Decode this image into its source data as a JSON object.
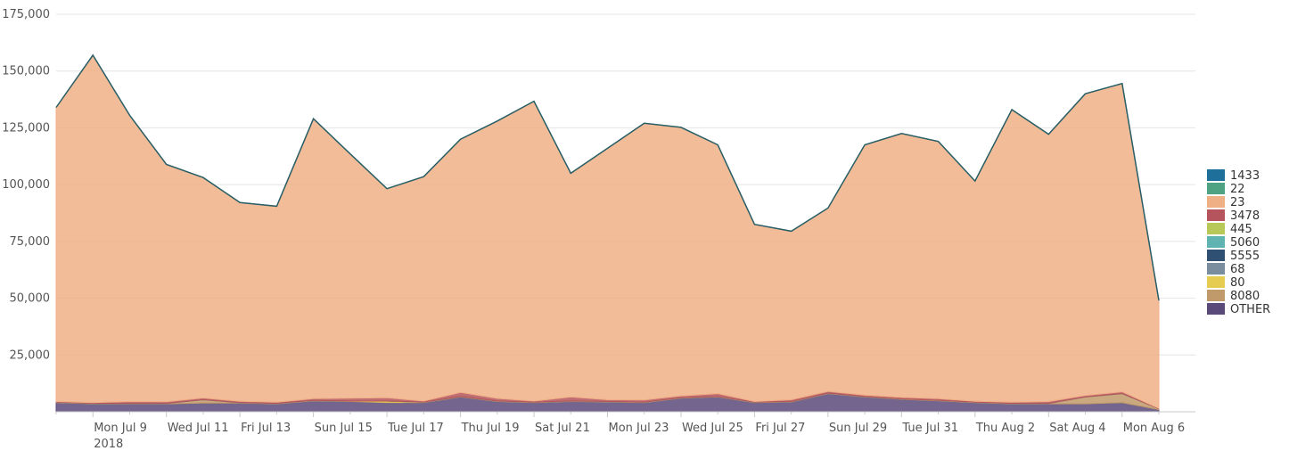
{
  "chart_data": {
    "type": "area",
    "stacked": true,
    "title": "",
    "xlabel": "",
    "ylabel": "",
    "ylim": [
      0,
      175000
    ],
    "y_ticks": [
      25000,
      50000,
      75000,
      100000,
      125000,
      150000,
      175000
    ],
    "y_tick_labels": [
      "25,000",
      "50,000",
      "75,000",
      "100,000",
      "125,000",
      "150,000",
      "175,000"
    ],
    "x": [
      "2018-07-08",
      "2018-07-09",
      "2018-07-10",
      "2018-07-11",
      "2018-07-12",
      "2018-07-13",
      "2018-07-14",
      "2018-07-15",
      "2018-07-16",
      "2018-07-17",
      "2018-07-18",
      "2018-07-19",
      "2018-07-20",
      "2018-07-21",
      "2018-07-22",
      "2018-07-23",
      "2018-07-24",
      "2018-07-25",
      "2018-07-26",
      "2018-07-27",
      "2018-07-28",
      "2018-07-29",
      "2018-07-30",
      "2018-07-31",
      "2018-08-01",
      "2018-08-02",
      "2018-08-03",
      "2018-08-04",
      "2018-08-05",
      "2018-08-06",
      "2018-08-07"
    ],
    "x_ticks": [
      {
        "date": "2018-07-09",
        "label": "Mon Jul 9",
        "sublabel": "2018"
      },
      {
        "date": "2018-07-11",
        "label": "Wed Jul 11"
      },
      {
        "date": "2018-07-13",
        "label": "Fri Jul 13"
      },
      {
        "date": "2018-07-15",
        "label": "Sun Jul 15"
      },
      {
        "date": "2018-07-17",
        "label": "Tue Jul 17"
      },
      {
        "date": "2018-07-19",
        "label": "Thu Jul 19"
      },
      {
        "date": "2018-07-21",
        "label": "Sat Jul 21"
      },
      {
        "date": "2018-07-23",
        "label": "Mon Jul 23"
      },
      {
        "date": "2018-07-25",
        "label": "Wed Jul 25"
      },
      {
        "date": "2018-07-27",
        "label": "Fri Jul 27"
      },
      {
        "date": "2018-07-29",
        "label": "Sun Jul 29"
      },
      {
        "date": "2018-07-31",
        "label": "Tue Jul 31"
      },
      {
        "date": "2018-08-02",
        "label": "Thu Aug 2"
      },
      {
        "date": "2018-08-04",
        "label": "Sat Aug 4"
      },
      {
        "date": "2018-08-06",
        "label": "Mon Aug 6"
      }
    ],
    "legend_position": "right",
    "series": [
      {
        "name": "OTHER",
        "color": "#5a4a7a",
        "values": [
          4000,
          3500,
          3500,
          3500,
          3800,
          3800,
          3500,
          4800,
          4500,
          4000,
          4000,
          6500,
          4500,
          4000,
          4500,
          4300,
          4000,
          6000,
          6500,
          4000,
          4300,
          8000,
          6500,
          5500,
          4800,
          4000,
          3500,
          3500,
          3500,
          4000,
          1000
        ]
      },
      {
        "name": "8080",
        "color": "#c19a6b",
        "values": [
          200,
          200,
          200,
          200,
          1500,
          200,
          200,
          200,
          200,
          200,
          200,
          200,
          200,
          200,
          200,
          200,
          200,
          200,
          200,
          200,
          200,
          200,
          200,
          200,
          200,
          200,
          200,
          200,
          3000,
          4000,
          300
        ]
      },
      {
        "name": "80",
        "color": "#e6cc50",
        "values": [
          0,
          0,
          0,
          0,
          0,
          0,
          0,
          0,
          0,
          500,
          0,
          0,
          0,
          0,
          0,
          0,
          0,
          0,
          0,
          0,
          0,
          0,
          0,
          0,
          0,
          0,
          0,
          0,
          0,
          0,
          0
        ]
      },
      {
        "name": "68",
        "color": "#7b8ea0",
        "values": [
          0,
          0,
          0,
          0,
          0,
          0,
          0,
          0,
          0,
          0,
          0,
          0,
          0,
          0,
          0,
          0,
          0,
          0,
          0,
          0,
          0,
          0,
          0,
          0,
          0,
          0,
          0,
          0,
          0,
          0,
          0
        ]
      },
      {
        "name": "5555",
        "color": "#2f4f73",
        "values": [
          0,
          0,
          0,
          0,
          0,
          0,
          0,
          0,
          0,
          0,
          0,
          0,
          0,
          0,
          0,
          0,
          0,
          0,
          0,
          0,
          0,
          0,
          0,
          0,
          0,
          0,
          0,
          0,
          0,
          0,
          0
        ]
      },
      {
        "name": "5060",
        "color": "#5fb3b0",
        "values": [
          0,
          0,
          0,
          0,
          0,
          0,
          0,
          0,
          0,
          0,
          0,
          0,
          0,
          0,
          0,
          0,
          0,
          0,
          0,
          0,
          0,
          0,
          0,
          0,
          0,
          0,
          0,
          0,
          0,
          0,
          0
        ]
      },
      {
        "name": "445",
        "color": "#b8c95a",
        "values": [
          0,
          0,
          0,
          0,
          0,
          0,
          0,
          0,
          0,
          0,
          0,
          0,
          0,
          0,
          0,
          0,
          0,
          0,
          0,
          0,
          0,
          0,
          0,
          0,
          0,
          0,
          0,
          0,
          0,
          0,
          0
        ]
      },
      {
        "name": "3478",
        "color": "#b5545c",
        "values": [
          300,
          300,
          800,
          700,
          800,
          600,
          500,
          800,
          1300,
          1500,
          500,
          1800,
          1200,
          500,
          1800,
          800,
          1000,
          800,
          1300,
          300,
          800,
          800,
          600,
          600,
          800,
          400,
          500,
          800,
          700,
          800,
          200
        ]
      },
      {
        "name": "23",
        "color": "#f0b086",
        "values": [
          129500,
          153000,
          126000,
          104500,
          97000,
          87500,
          86300,
          123200,
          107500,
          92000,
          98800,
          111500,
          122100,
          132000,
          98500,
          110700,
          121800,
          118200,
          109500,
          78000,
          74200,
          80700,
          110200,
          116200,
          113200,
          97000,
          128800,
          117700,
          132800,
          135700,
          47500
        ]
      },
      {
        "name": "22",
        "color": "#4fa383",
        "values": [
          0,
          0,
          0,
          0,
          0,
          0,
          0,
          0,
          0,
          0,
          0,
          0,
          0,
          0,
          0,
          0,
          0,
          0,
          0,
          0,
          0,
          0,
          0,
          0,
          0,
          0,
          0,
          0,
          0,
          0,
          0
        ]
      },
      {
        "name": "1433",
        "color": "#1e6f9a",
        "values": [
          0,
          0,
          0,
          0,
          0,
          0,
          0,
          0,
          0,
          0,
          0,
          0,
          0,
          0,
          0,
          0,
          0,
          0,
          0,
          0,
          0,
          0,
          0,
          0,
          0,
          0,
          0,
          0,
          0,
          0,
          0
        ]
      }
    ],
    "legend": [
      {
        "name": "1433",
        "color": "#1e6f9a"
      },
      {
        "name": "22",
        "color": "#4fa383"
      },
      {
        "name": "23",
        "color": "#f0b086"
      },
      {
        "name": "3478",
        "color": "#b5545c"
      },
      {
        "name": "445",
        "color": "#b8c95a"
      },
      {
        "name": "5060",
        "color": "#5fb3b0"
      },
      {
        "name": "5555",
        "color": "#2f4f73"
      },
      {
        "name": "68",
        "color": "#7b8ea0"
      },
      {
        "name": "80",
        "color": "#e6cc50"
      },
      {
        "name": "8080",
        "color": "#c19a6b"
      },
      {
        "name": "OTHER",
        "color": "#5a4a7a"
      }
    ],
    "total_line_color": "#2b5f66"
  }
}
